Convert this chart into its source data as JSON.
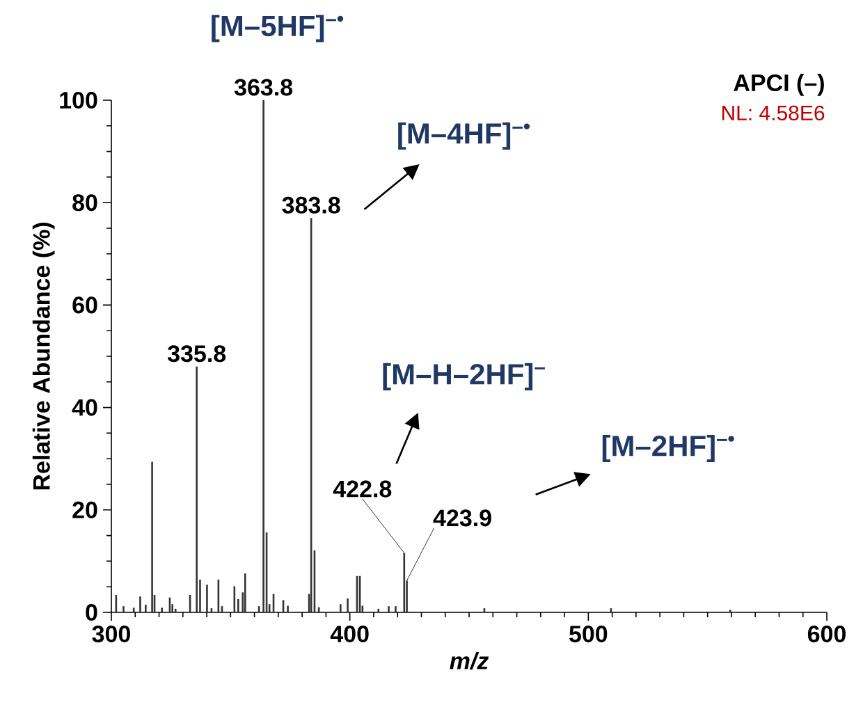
{
  "chart_data": {
    "type": "bar",
    "xlabel": "m/z",
    "ylabel": "Relative Abundance (%)",
    "color": "#333333",
    "x": [
      302.0,
      305.1,
      309.4,
      312.1,
      314.4,
      317.1,
      318.1,
      321.2,
      324.5,
      325.6,
      326.9,
      333.0,
      335.8,
      337.2,
      340.1,
      342.0,
      344.9,
      346.4,
      351.6,
      353.2,
      355.1,
      356.1,
      361.9,
      363.8,
      365.1,
      366.3,
      368.0,
      372.1,
      374.0,
      382.9,
      383.8,
      385.2,
      387.0,
      396.1,
      399.1,
      403.0,
      404.2,
      405.3,
      412.0,
      416.3,
      419.2,
      422.8,
      423.9,
      456.4,
      509.5,
      559.5
    ],
    "values": [
      3.4,
      1.2,
      0.9,
      3.1,
      1.5,
      29.4,
      3.4,
      0.9,
      2.9,
      1.6,
      0.7,
      3.4,
      48,
      6.4,
      5.4,
      0.8,
      6.4,
      1.2,
      5.1,
      2.6,
      3.9,
      7.6,
      1.2,
      100,
      15.6,
      1.6,
      3.6,
      2.4,
      1.3,
      3.6,
      77,
      12.1,
      1.0,
      1.6,
      2.7,
      7.1,
      7.1,
      1.3,
      0.7,
      1.2,
      1.2,
      11.6,
      6.2,
      0.8,
      0.8,
      0.5
    ],
    "xlim": [
      300,
      600
    ],
    "ylim": [
      0,
      100
    ],
    "xticks": [
      300,
      400,
      500,
      600
    ],
    "yticks": [
      0,
      20,
      40,
      60,
      80,
      100
    ],
    "annotations": [
      "[M–5HF]$^{–•}$",
      "[M–4HF]$^{–•}$",
      "[M–H–2HF]$^{–}$",
      "[M–2HF]$^{–•}$",
      "APCI (–)",
      "NL:  4.58E6",
      {
        "text": "363.8",
        "x": 363.8,
        "y": 100
      },
      {
        "text": "335.8",
        "x": 335.8,
        "y": 48
      },
      {
        "text": "383.8",
        "x": 383.8,
        "y": 77
      },
      {
        "text": "422.8",
        "x": 422.8,
        "y": 11.6
      },
      {
        "text": "423.9",
        "x": 423.9,
        "y": 6.2
      }
    ]
  }
}
